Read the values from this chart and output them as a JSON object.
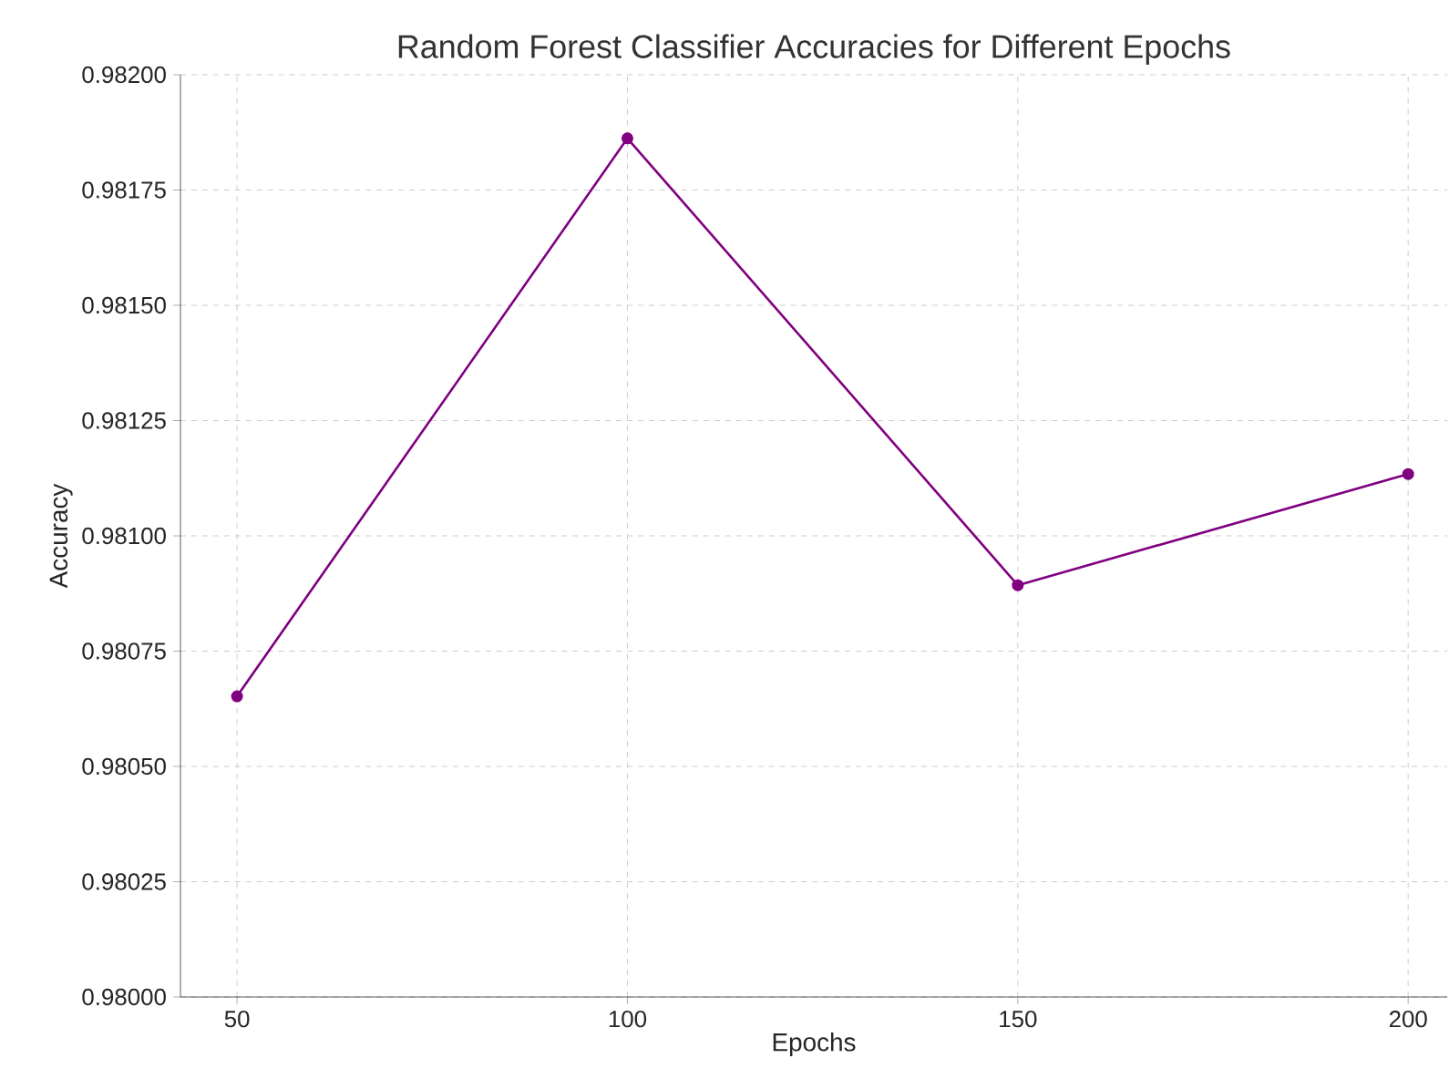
{
  "chart_data": {
    "type": "line",
    "title": "Random Forest Classifier Accuracies for Different Epochs",
    "xlabel": "Epochs",
    "ylabel": "Accuracy",
    "x": [
      50,
      100,
      150,
      200
    ],
    "series": [
      {
        "color": "#800080",
        "values": [
          0.980652,
          0.981862,
          0.980893,
          0.981134
        ]
      }
    ],
    "xlim": [
      42.75,
      205
    ],
    "xticks": [
      50,
      100,
      150,
      200
    ],
    "ylim": [
      0.98,
      0.982
    ],
    "yticks": [
      {
        "value": 0.98,
        "label": "0.98000"
      },
      {
        "value": 0.98025,
        "label": "0.98025"
      },
      {
        "value": 0.9805,
        "label": "0.98050"
      },
      {
        "value": 0.98075,
        "label": "0.98075"
      },
      {
        "value": 0.981,
        "label": "0.98100"
      },
      {
        "value": 0.98125,
        "label": "0.98125"
      },
      {
        "value": 0.9815,
        "label": "0.98150"
      },
      {
        "value": 0.98175,
        "label": "0.98175"
      },
      {
        "value": 0.982,
        "label": "0.98200"
      }
    ],
    "grid": true,
    "marker": "circle",
    "line_style": "solid"
  }
}
